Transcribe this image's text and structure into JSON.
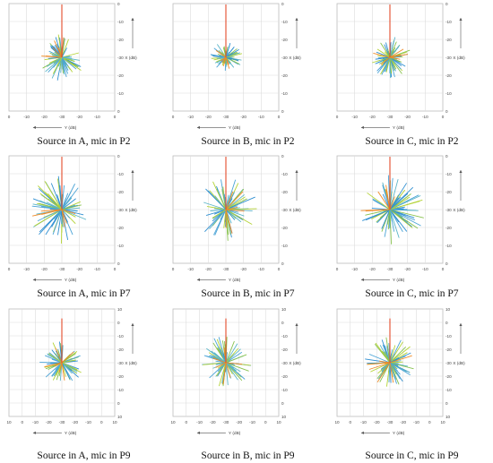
{
  "chart_data": [
    {
      "type": "polar-ray",
      "caption": "Source in A, mic in P2",
      "xlabel": "Y (dB)",
      "ylabel": "X (dB)",
      "xticks": [
        "0",
        "-10",
        "-20",
        "-30",
        "-20",
        "-10",
        "0"
      ],
      "yticks": [
        "0",
        "-10",
        "-20",
        "-30",
        "-20",
        "-10",
        "0"
      ],
      "grid": true,
      "spread": 0.4,
      "seed": 11,
      "palette": [
        "#2f8fd1",
        "#4aa3d6",
        "#5bb5c8",
        "#88c24f",
        "#b3d234",
        "#f08a24",
        "#e34b2b"
      ]
    },
    {
      "type": "polar-ray",
      "caption": "Source in B, mic in P2",
      "xlabel": "Y (dB)",
      "ylabel": "X (dB)",
      "xticks": [
        "0",
        "-10",
        "-20",
        "-30",
        "-20",
        "-10",
        "0"
      ],
      "yticks": [
        "0",
        "-10",
        "-20",
        "-30",
        "-20",
        "-10",
        "0"
      ],
      "grid": true,
      "spread": 0.28,
      "seed": 23,
      "palette": [
        "#2f8fd1",
        "#4aa3d6",
        "#5bb5c8",
        "#88c24f",
        "#b3d234",
        "#f08a24",
        "#e34b2b"
      ]
    },
    {
      "type": "polar-ray",
      "caption": "Source in C, mic in P2",
      "xlabel": "Y (dB)",
      "ylabel": "X (dB)",
      "xticks": [
        "0",
        "-10",
        "-20",
        "-30",
        "-20",
        "-10",
        "0"
      ],
      "yticks": [
        "0",
        "-10",
        "-20",
        "-30",
        "-20",
        "-10",
        "0"
      ],
      "grid": true,
      "spread": 0.36,
      "seed": 37,
      "palette": [
        "#2f8fd1",
        "#4aa3d6",
        "#5bb5c8",
        "#88c24f",
        "#b3d234",
        "#f08a24",
        "#e34b2b"
      ]
    },
    {
      "type": "polar-ray",
      "caption": "Source in A, mic in P7",
      "xlabel": "Y (dB)",
      "ylabel": "X (dB)",
      "xticks": [
        "0",
        "-10",
        "-20",
        "-30",
        "-20",
        "-10",
        "0"
      ],
      "yticks": [
        "0",
        "-10",
        "-20",
        "-30",
        "-20",
        "-10",
        "0"
      ],
      "grid": true,
      "spread": 0.58,
      "seed": 41,
      "palette": [
        "#2f8fd1",
        "#4aa3d6",
        "#5bb5c8",
        "#88c24f",
        "#b3d234",
        "#f08a24",
        "#e34b2b"
      ]
    },
    {
      "type": "polar-ray",
      "caption": "Source in B, mic in P7",
      "xlabel": "Y (dB)",
      "ylabel": "X (dB)",
      "xticks": [
        "0",
        "-10",
        "-20",
        "-30",
        "-20",
        "-10",
        "0"
      ],
      "yticks": [
        "0",
        "-10",
        "-20",
        "-30",
        "-20",
        "-10",
        "0"
      ],
      "grid": true,
      "spread": 0.55,
      "seed": 53,
      "palette": [
        "#2f8fd1",
        "#4aa3d6",
        "#5bb5c8",
        "#88c24f",
        "#b3d234",
        "#f08a24",
        "#e34b2b"
      ]
    },
    {
      "type": "polar-ray",
      "caption": "Source in C, mic in P7",
      "xlabel": "Y (dB)",
      "ylabel": "X (dB)",
      "xticks": [
        "0",
        "-10",
        "-20",
        "-30",
        "-20",
        "-10",
        "0"
      ],
      "yticks": [
        "0",
        "-10",
        "-20",
        "-30",
        "-20",
        "-10",
        "0"
      ],
      "grid": true,
      "spread": 0.6,
      "seed": 67,
      "palette": [
        "#2f8fd1",
        "#4aa3d6",
        "#5bb5c8",
        "#88c24f",
        "#b3d234",
        "#f08a24",
        "#e34b2b"
      ]
    },
    {
      "type": "polar-ray",
      "caption": "Source in A, mic in P9",
      "xlabel": "Y (dB)",
      "ylabel": "X (dB)",
      "xticks": [
        "10",
        "0",
        "-10",
        "-20",
        "-30",
        "-20",
        "-10",
        "0",
        "10"
      ],
      "yticks": [
        "10",
        "0",
        "-10",
        "-20",
        "-30",
        "-20",
        "-10",
        "0",
        "10"
      ],
      "grid": true,
      "spread": 0.38,
      "seed": 71,
      "palette": [
        "#2f8fd1",
        "#4aa3d6",
        "#5bb5c8",
        "#88c24f",
        "#b3d234",
        "#f08a24",
        "#e34b2b"
      ]
    },
    {
      "type": "polar-ray",
      "caption": "Source in B, mic in P9",
      "xlabel": "Y (dB)",
      "ylabel": "X (dB)",
      "xticks": [
        "10",
        "0",
        "-10",
        "-20",
        "-30",
        "-20",
        "-10",
        "0",
        "10"
      ],
      "yticks": [
        "10",
        "0",
        "-10",
        "-20",
        "-30",
        "-20",
        "-10",
        "0",
        "10"
      ],
      "grid": true,
      "spread": 0.46,
      "seed": 83,
      "palette": [
        "#2f8fd1",
        "#4aa3d6",
        "#5bb5c8",
        "#88c24f",
        "#b3d234",
        "#f08a24",
        "#e34b2b"
      ]
    },
    {
      "type": "polar-ray",
      "caption": "Source in C, mic in P9",
      "xlabel": "Y (dB)",
      "ylabel": "X (dB)",
      "xticks": [
        "10",
        "0",
        "-10",
        "-20",
        "-30",
        "-20",
        "-10",
        "0",
        "10"
      ],
      "yticks": [
        "10",
        "0",
        "-10",
        "-20",
        "-30",
        "-20",
        "-10",
        "0",
        "10"
      ],
      "grid": true,
      "spread": 0.44,
      "seed": 97,
      "palette": [
        "#2f8fd1",
        "#4aa3d6",
        "#5bb5c8",
        "#88c24f",
        "#b3d234",
        "#f08a24",
        "#e34b2b"
      ]
    }
  ]
}
